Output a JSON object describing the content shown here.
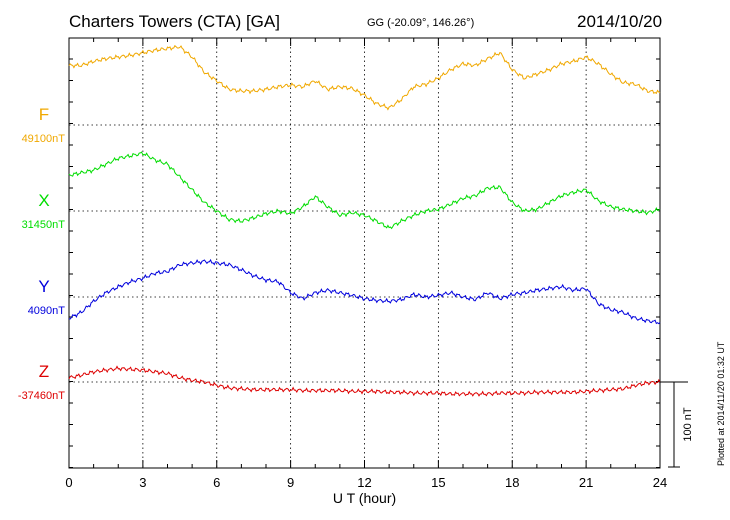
{
  "header": {
    "title": "Charters Towers (CTA)  [GA]",
    "coords": "GG (-20.09°, 146.26°)",
    "date": "2014/10/20"
  },
  "footer": {
    "plotted": "Plotted at 2014/11/20 01:32 UT"
  },
  "chart_data": {
    "type": "line",
    "title": "Charters Towers (CTA)  [GA]",
    "xlabel": "U T (hour)",
    "xlim": [
      0,
      24
    ],
    "xticks": [
      0,
      3,
      6,
      9,
      12,
      15,
      18,
      21,
      24
    ],
    "xtick_labels": [
      "0",
      "3",
      "6",
      "9",
      "12",
      "15",
      "18",
      "21",
      "24"
    ],
    "grid": true,
    "scale_bar": {
      "value": 100,
      "label": "100 nT"
    },
    "series": [
      {
        "name": "F",
        "baseline_label": "49100nT",
        "color": "#f0a800",
        "x": [
          0,
          0.5,
          1,
          1.5,
          2,
          2.5,
          3,
          3.5,
          4,
          4.5,
          5,
          5.5,
          6,
          6.5,
          7,
          7.5,
          8,
          8.5,
          9,
          9.5,
          10,
          10.5,
          11,
          11.5,
          12,
          12.5,
          13,
          13.5,
          14,
          14.5,
          15,
          15.5,
          16,
          16.5,
          17,
          17.5,
          18,
          18.5,
          19,
          19.5,
          20,
          20.5,
          21,
          21.5,
          22,
          22.5,
          23,
          23.5,
          24
        ],
        "y": [
          70,
          70,
          75,
          78,
          80,
          82,
          85,
          88,
          90,
          92,
          80,
          62,
          52,
          42,
          40,
          40,
          42,
          45,
          47,
          45,
          52,
          42,
          45,
          43,
          35,
          25,
          20,
          30,
          45,
          48,
          55,
          65,
          72,
          70,
          78,
          85,
          65,
          55,
          60,
          65,
          72,
          75,
          80,
          72,
          60,
          50,
          48,
          40,
          38
        ]
      },
      {
        "name": "X",
        "baseline_label": "31450nT",
        "color": "#00dd00",
        "x": [
          0,
          0.5,
          1,
          1.5,
          2,
          2.5,
          3,
          3.5,
          4,
          4.5,
          5,
          5.5,
          6,
          6.5,
          7,
          7.5,
          8,
          8.5,
          9,
          9.5,
          10,
          10.5,
          11,
          11.5,
          12,
          12.5,
          13,
          13.5,
          14,
          14.5,
          15,
          15.5,
          16,
          16.5,
          17,
          17.5,
          18,
          18.5,
          19,
          19.5,
          20,
          20.5,
          21,
          21.5,
          22,
          22.5,
          23,
          23.5,
          24
        ],
        "y": [
          42,
          45,
          48,
          55,
          62,
          65,
          68,
          60,
          55,
          40,
          25,
          10,
          0,
          -10,
          -12,
          -8,
          -3,
          0,
          -3,
          5,
          17,
          5,
          -5,
          -2,
          -5,
          -12,
          -20,
          -12,
          -5,
          0,
          2,
          8,
          15,
          18,
          27,
          28,
          10,
          0,
          2,
          10,
          18,
          22,
          25,
          12,
          5,
          2,
          0,
          -2,
          2
        ]
      },
      {
        "name": "Y",
        "baseline_label": "4090nT",
        "color": "#0000dd",
        "x": [
          0,
          0.5,
          1,
          1.5,
          2,
          2.5,
          3,
          3.5,
          4,
          4.5,
          5,
          5.5,
          6,
          6.5,
          7,
          7.5,
          8,
          8.5,
          9,
          9.5,
          10,
          10.5,
          11,
          11.5,
          12,
          12.5,
          13,
          13.5,
          14,
          14.5,
          15,
          15.5,
          16,
          16.5,
          17,
          17.5,
          18,
          18.5,
          19,
          19.5,
          20,
          20.5,
          21,
          21.5,
          22,
          22.5,
          23,
          23.5,
          24
        ],
        "y": [
          -25,
          -18,
          -5,
          5,
          12,
          18,
          22,
          28,
          30,
          38,
          40,
          42,
          40,
          38,
          32,
          25,
          20,
          18,
          5,
          -2,
          5,
          8,
          5,
          2,
          -2,
          -4,
          -5,
          -3,
          3,
          0,
          2,
          5,
          0,
          -3,
          5,
          -2,
          3,
          5,
          8,
          10,
          12,
          8,
          10,
          -8,
          -15,
          -18,
          -25,
          -28,
          -30
        ]
      },
      {
        "name": "Z",
        "baseline_label": "-37460nT",
        "color": "#dd0000",
        "x": [
          0,
          0.5,
          1,
          1.5,
          2,
          2.5,
          3,
          3.5,
          4,
          4.5,
          5,
          5.5,
          6,
          6.5,
          7,
          7.5,
          8,
          8.5,
          9,
          9.5,
          10,
          10.5,
          11,
          11.5,
          12,
          12.5,
          13,
          13.5,
          14,
          14.5,
          15,
          15.5,
          16,
          16.5,
          17,
          17.5,
          18,
          18.5,
          19,
          19.5,
          20,
          20.5,
          21,
          21.5,
          22,
          22.5,
          23,
          23.5,
          24
        ],
        "y": [
          5,
          8,
          12,
          14,
          16,
          15,
          14,
          12,
          10,
          5,
          2,
          0,
          -4,
          -7,
          -8,
          -9,
          -9,
          -9,
          -9,
          -10,
          -10,
          -10,
          -10,
          -11,
          -11,
          -11,
          -12,
          -12,
          -13,
          -13,
          -13,
          -14,
          -14,
          -14,
          -14,
          -13,
          -13,
          -13,
          -12,
          -12,
          -12,
          -12,
          -11,
          -10,
          -9,
          -8,
          -4,
          -1,
          0
        ]
      }
    ]
  }
}
